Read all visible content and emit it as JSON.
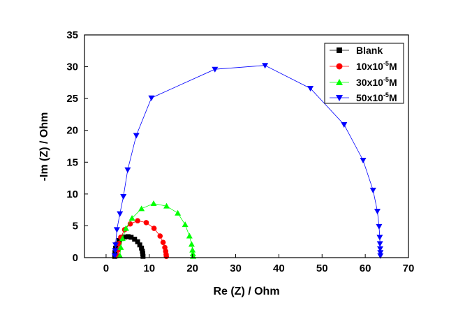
{
  "chart_data": {
    "type": "scatter",
    "title": "",
    "xlabel": "Re (Z) / Ohm",
    "ylabel": "-Im (Z) / Ohm",
    "xlim": [
      -5,
      70
    ],
    "ylim": [
      0,
      35
    ],
    "xticks": [
      0,
      10,
      20,
      30,
      40,
      50,
      60,
      70
    ],
    "yticks": [
      0,
      5,
      10,
      15,
      20,
      25,
      30,
      35
    ],
    "legend_position": "top-right",
    "series": [
      {
        "name": "Blank",
        "label_base": "Blank",
        "label_sup": "",
        "label_suffix": "",
        "color": "#000000",
        "marker": "square",
        "points": [
          [
            2.0,
            0.2
          ],
          [
            2.05,
            0.8
          ],
          [
            2.2,
            1.5
          ],
          [
            2.5,
            2.1
          ],
          [
            3.0,
            2.7
          ],
          [
            3.6,
            3.0
          ],
          [
            4.3,
            3.25
          ],
          [
            5.1,
            3.3
          ],
          [
            5.8,
            3.2
          ],
          [
            6.6,
            2.9
          ],
          [
            7.3,
            2.5
          ],
          [
            7.8,
            2.0
          ],
          [
            8.2,
            1.5
          ],
          [
            8.4,
            1.0
          ],
          [
            8.5,
            0.6
          ],
          [
            8.55,
            0.2
          ]
        ]
      },
      {
        "name": "10x10^-5M",
        "label_base": "10x10",
        "label_sup": "-5",
        "label_suffix": "M",
        "color": "#ff0000",
        "marker": "circle",
        "points": [
          [
            2.7,
            0.3
          ],
          [
            2.8,
            1.2
          ],
          [
            3.0,
            2.2
          ],
          [
            3.4,
            3.2
          ],
          [
            4.3,
            4.4
          ],
          [
            5.6,
            5.3
          ],
          [
            7.3,
            5.8
          ],
          [
            9.3,
            5.5
          ],
          [
            11.1,
            4.6
          ],
          [
            12.5,
            3.4
          ],
          [
            13.2,
            2.4
          ],
          [
            13.6,
            1.6
          ],
          [
            13.8,
            1.0
          ],
          [
            13.9,
            0.5
          ],
          [
            13.95,
            0.2
          ]
        ]
      },
      {
        "name": "30x10^-5M",
        "label_base": "30x10",
        "label_sup": "-5",
        "label_suffix": "M",
        "color": "#00ff00",
        "marker": "triangle-up",
        "points": [
          [
            3.2,
            0.3
          ],
          [
            3.4,
            1.6
          ],
          [
            3.8,
            3.0
          ],
          [
            4.6,
            4.6
          ],
          [
            6.0,
            6.2
          ],
          [
            8.2,
            7.7
          ],
          [
            11.0,
            8.5
          ],
          [
            14.0,
            8.1
          ],
          [
            16.6,
            7.0
          ],
          [
            18.3,
            5.2
          ],
          [
            19.3,
            3.4
          ],
          [
            19.8,
            2.1
          ],
          [
            20.0,
            1.2
          ],
          [
            20.1,
            0.6
          ],
          [
            20.15,
            0.2
          ]
        ]
      },
      {
        "name": "50x10^-5M",
        "label_base": "50x10",
        "label_sup": "-5",
        "label_suffix": "M",
        "color": "#0000ff",
        "marker": "triangle-down",
        "points": [
          [
            2.0,
            0.3
          ],
          [
            2.1,
            1.1
          ],
          [
            2.2,
            2.0
          ],
          [
            2.5,
            4.4
          ],
          [
            3.2,
            6.9
          ],
          [
            4.0,
            9.6
          ],
          [
            5.0,
            13.8
          ],
          [
            7.0,
            19.2
          ],
          [
            10.5,
            25.1
          ],
          [
            25.2,
            29.6
          ],
          [
            36.8,
            30.2
          ],
          [
            47.3,
            26.6
          ],
          [
            55.1,
            20.9
          ],
          [
            59.5,
            15.3
          ],
          [
            61.8,
            10.6
          ],
          [
            62.8,
            7.3
          ],
          [
            63.2,
            4.9
          ],
          [
            63.35,
            3.2
          ],
          [
            63.4,
            2.2
          ],
          [
            63.45,
            1.4
          ],
          [
            63.5,
            0.8
          ],
          [
            63.5,
            0.3
          ]
        ]
      }
    ]
  }
}
